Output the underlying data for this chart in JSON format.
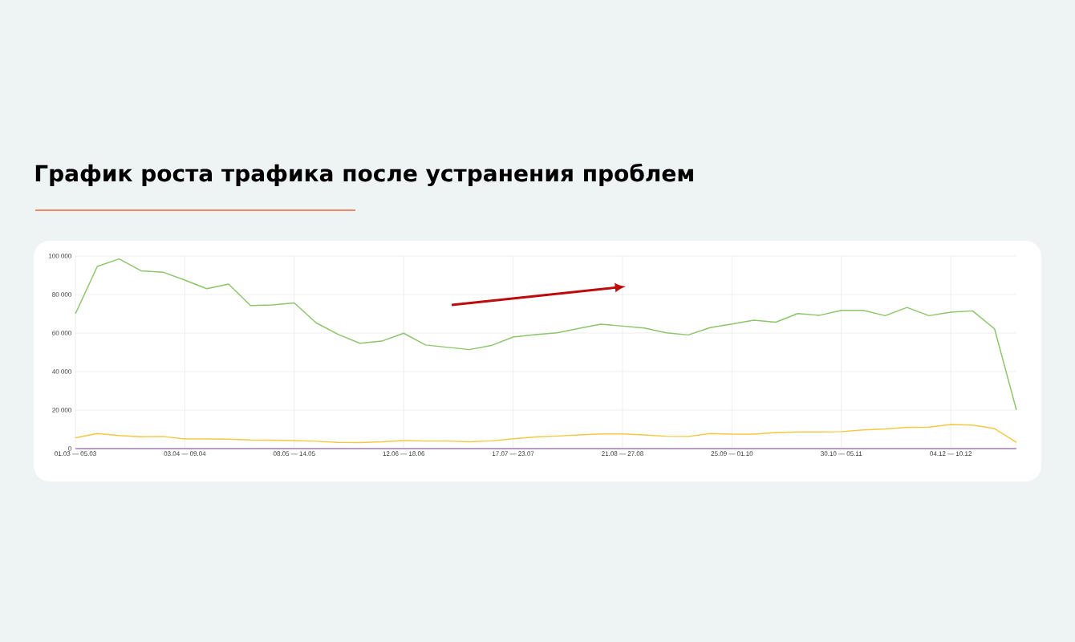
{
  "chart_data": {
    "type": "line",
    "title": "График роста трафика после устранения проблем",
    "categories": [
      "01.03 — 05.03",
      null,
      null,
      null,
      null,
      "03.04 — 09.04",
      null,
      null,
      null,
      null,
      "08.05 — 14.05",
      null,
      null,
      null,
      null,
      "12.06 — 18.06",
      null,
      null,
      null,
      null,
      "17.07 — 23.07",
      null,
      null,
      null,
      null,
      "21.08 — 27.08",
      null,
      null,
      null,
      null,
      "25.09 — 01.10",
      null,
      null,
      null,
      null,
      "30.10 — 05.11",
      null,
      null,
      null,
      null,
      "04.12 — 10.12",
      null,
      null,
      null
    ],
    "series": [
      {
        "color": "#8cc56a",
        "values": [
          70000,
          94600,
          98500,
          92300,
          91600,
          87500,
          83000,
          85400,
          74300,
          74600,
          75600,
          65300,
          59300,
          54700,
          55800,
          59900,
          53800,
          52600,
          51400,
          53500,
          57900,
          59200,
          60100,
          62400,
          64600,
          63600,
          62600,
          60100,
          59000,
          62800,
          64700,
          66700,
          65600,
          70100,
          69200,
          71800,
          71800,
          69000,
          73300,
          69000,
          70800,
          71500,
          62200,
          20000
        ]
      },
      {
        "color": "#f5c842",
        "values": [
          5600,
          7800,
          6800,
          6100,
          6300,
          5000,
          5000,
          4900,
          4500,
          4400,
          4200,
          3800,
          3200,
          3100,
          3500,
          4200,
          3900,
          3900,
          3500,
          4000,
          5100,
          6000,
          6500,
          7100,
          7600,
          7600,
          7100,
          6400,
          6300,
          7800,
          7500,
          7500,
          8300,
          8600,
          8600,
          8800,
          9700,
          10200,
          11000,
          11100,
          12500,
          12200,
          10400,
          3300
        ]
      },
      {
        "color": "#a27fb5",
        "values": [
          0,
          0,
          0,
          0,
          0,
          0,
          0,
          0,
          0,
          0,
          0,
          0,
          0,
          0,
          0,
          0,
          0,
          0,
          0,
          0,
          0,
          0,
          0,
          0,
          0,
          0,
          0,
          0,
          0,
          0,
          0,
          0,
          0,
          0,
          0,
          0,
          0,
          0,
          0,
          0,
          0,
          0,
          0,
          0
        ]
      }
    ],
    "ylim": [
      0,
      100000
    ],
    "yticks": [
      {
        "value": 0,
        "label": "0"
      },
      {
        "value": 20000,
        "label": "20 000"
      },
      {
        "value": 40000,
        "label": "40 000"
      },
      {
        "value": 60000,
        "label": "60 000"
      },
      {
        "value": 80000,
        "label": "80 000"
      },
      {
        "value": 100000,
        "label": "100 000"
      }
    ],
    "grid": true,
    "marker": "none",
    "line_style": "solid"
  }
}
